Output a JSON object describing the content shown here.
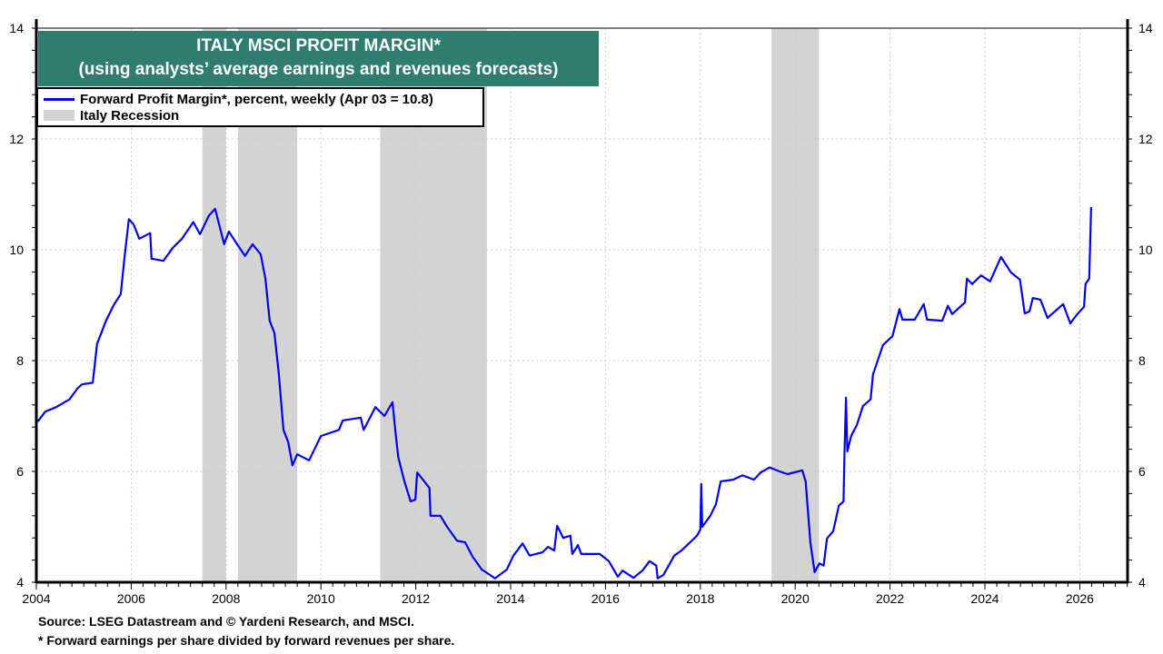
{
  "chart_data": {
    "type": "line",
    "title": "ITALY MSCI PROFIT MARGIN*",
    "subtitle": "(using analysts’ average earnings and revenues forecasts)",
    "xlabel": "",
    "ylabel": "",
    "xlim": [
      2004,
      2027.1
    ],
    "ylim": [
      4,
      14
    ],
    "x_ticks": [
      "2004",
      "2006",
      "2008",
      "2010",
      "2012",
      "2014",
      "2016",
      "2018",
      "2020",
      "2022",
      "2024",
      "2026"
    ],
    "y_ticks": [
      "4",
      "6",
      "8",
      "10",
      "12",
      "14"
    ],
    "grid": true,
    "legend_placement": "top-left",
    "legend": [
      {
        "label": "Forward Profit Margin*, percent, weekly (Apr 03 = 10.8)",
        "color": "#0000ee"
      },
      {
        "label": "Italy Recession",
        "color": "#d3d3d3"
      }
    ],
    "recessions": [
      [
        2007.5,
        2008.0
      ],
      [
        2008.25,
        2009.5
      ],
      [
        2011.25,
        2013.5
      ],
      [
        2019.5,
        2020.5
      ]
    ],
    "series": [
      {
        "name": "Forward Profit Margin*, percent, weekly (Apr 03 = 10.8)",
        "color": "#0000ee",
        "x": [
          2004.03,
          2004.19,
          2004.42,
          2004.7,
          2004.87,
          2004.96,
          2005.19,
          2005.28,
          2005.38,
          2005.47,
          2005.63,
          2005.78,
          2005.86,
          2005.95,
          2006.05,
          2006.17,
          2006.4,
          2006.43,
          2006.68,
          2006.87,
          2007.07,
          2007.31,
          2007.45,
          2007.64,
          2007.77,
          2007.96,
          2008.06,
          2008.21,
          2008.4,
          2008.56,
          2008.73,
          2008.83,
          2008.92,
          2009.02,
          2009.11,
          2009.21,
          2009.31,
          2009.4,
          2009.5,
          2009.75,
          2010.0,
          2010.38,
          2010.46,
          2010.84,
          2010.9,
          2011.15,
          2011.34,
          2011.51,
          2011.57,
          2011.63,
          2011.76,
          2011.89,
          2011.99,
          2012.03,
          2012.18,
          2012.29,
          2012.31,
          2012.52,
          2012.66,
          2012.87,
          2013.04,
          2013.2,
          2013.39,
          2013.67,
          2013.92,
          2014.06,
          2014.25,
          2014.4,
          2014.67,
          2014.79,
          2014.92,
          2014.98,
          2015.11,
          2015.26,
          2015.3,
          2015.42,
          2015.49,
          2015.88,
          2016.07,
          2016.26,
          2016.36,
          2016.59,
          2016.78,
          2016.93,
          2017.07,
          2017.1,
          2017.22,
          2017.45,
          2017.6,
          2017.93,
          2018.0,
          2018.02,
          2018.04,
          2018.21,
          2018.33,
          2018.43,
          2018.69,
          2018.89,
          2019.13,
          2019.27,
          2019.46,
          2019.67,
          2019.84,
          2020.15,
          2020.22,
          2020.32,
          2020.41,
          2020.51,
          2020.6,
          2020.67,
          2020.8,
          2020.92,
          2021.02,
          2021.04,
          2021.07,
          2021.1,
          2021.18,
          2021.3,
          2021.43,
          2021.59,
          2021.64,
          2021.85,
          2022.05,
          2022.2,
          2022.26,
          2022.52,
          2022.71,
          2022.78,
          2023.1,
          2023.22,
          2023.31,
          2023.58,
          2023.62,
          2023.73,
          2023.92,
          2024.11,
          2024.34,
          2024.55,
          2024.74,
          2024.84,
          2024.94,
          2025.01,
          2025.17,
          2025.32,
          2025.65,
          2025.8,
          2025.93,
          2026.09,
          2026.12,
          2026.2,
          2026.24
        ],
        "y": [
          6.9,
          7.08,
          7.16,
          7.3,
          7.5,
          7.57,
          7.6,
          8.3,
          8.52,
          8.72,
          9.0,
          9.2,
          9.87,
          10.55,
          10.46,
          10.2,
          10.3,
          9.84,
          9.8,
          10.03,
          10.2,
          10.5,
          10.28,
          10.62,
          10.74,
          10.1,
          10.33,
          10.13,
          9.89,
          10.1,
          9.92,
          9.48,
          8.72,
          8.5,
          7.79,
          6.75,
          6.53,
          6.11,
          6.31,
          6.2,
          6.64,
          6.75,
          6.92,
          6.97,
          6.75,
          7.16,
          7.0,
          7.25,
          6.72,
          6.26,
          5.82,
          5.46,
          5.49,
          5.98,
          5.82,
          5.7,
          5.2,
          5.2,
          5.0,
          4.75,
          4.72,
          4.46,
          4.23,
          4.07,
          4.23,
          4.48,
          4.7,
          4.48,
          4.54,
          4.64,
          4.57,
          5.02,
          4.8,
          4.84,
          4.51,
          4.67,
          4.51,
          4.51,
          4.38,
          4.1,
          4.21,
          4.08,
          4.21,
          4.38,
          4.3,
          4.07,
          4.13,
          4.48,
          4.57,
          4.84,
          4.95,
          5.77,
          5.0,
          5.2,
          5.41,
          5.82,
          5.85,
          5.93,
          5.85,
          5.98,
          6.07,
          6.0,
          5.95,
          6.02,
          5.82,
          4.72,
          4.18,
          4.34,
          4.3,
          4.79,
          4.92,
          5.38,
          5.46,
          6.36,
          7.33,
          6.36,
          6.64,
          6.84,
          7.18,
          7.3,
          7.75,
          8.28,
          8.44,
          8.93,
          8.74,
          8.74,
          9.02,
          8.74,
          8.72,
          8.99,
          8.84,
          9.05,
          9.48,
          9.38,
          9.54,
          9.43,
          9.87,
          9.59,
          9.46,
          8.85,
          8.89,
          9.13,
          9.1,
          8.77,
          9.02,
          8.67,
          8.82,
          8.97,
          9.38,
          9.48,
          10.77
        ]
      }
    ]
  },
  "footer": {
    "source": "Source: LSEG Datastream and © Yardeni Research, and MSCI.",
    "note": "* Forward earnings per share divided by forward revenues per share."
  }
}
